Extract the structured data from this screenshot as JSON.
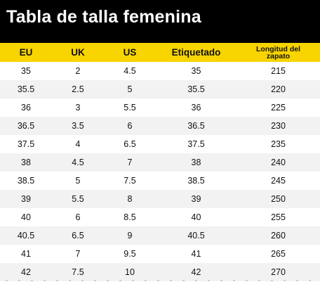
{
  "title": "Tabla de talla femenina",
  "colors": {
    "title_bg": "#000000",
    "title_fg": "#ffffff",
    "header_bg": "#f8d400",
    "row_alt_bg": "#f2f2f2"
  },
  "headers": {
    "eu": "EU",
    "uk": "UK",
    "us": "US",
    "label": "Etiquetado",
    "length_line1": "Longitud del",
    "length_line2": "zapato"
  },
  "rows": [
    {
      "eu": "35",
      "uk": "2",
      "us": "4.5",
      "label": "35",
      "length": "215"
    },
    {
      "eu": "35.5",
      "uk": "2.5",
      "us": "5",
      "label": "35.5",
      "length": "220"
    },
    {
      "eu": "36",
      "uk": "3",
      "us": "5.5",
      "label": "36",
      "length": "225"
    },
    {
      "eu": "36.5",
      "uk": "3.5",
      "us": "6",
      "label": "36.5",
      "length": "230"
    },
    {
      "eu": "37.5",
      "uk": "4",
      "us": "6.5",
      "label": "37.5",
      "length": "235"
    },
    {
      "eu": "38",
      "uk": "4.5",
      "us": "7",
      "label": "38",
      "length": "240"
    },
    {
      "eu": "38.5",
      "uk": "5",
      "us": "7.5",
      "label": "38.5",
      "length": "245"
    },
    {
      "eu": "39",
      "uk": "5.5",
      "us": "8",
      "label": "39",
      "length": "250"
    },
    {
      "eu": "40",
      "uk": "6",
      "us": "8.5",
      "label": "40",
      "length": "255"
    },
    {
      "eu": "40.5",
      "uk": "6.5",
      "us": "9",
      "label": "40.5",
      "length": "260"
    },
    {
      "eu": "41",
      "uk": "7",
      "us": "9.5",
      "label": "41",
      "length": "265"
    },
    {
      "eu": "42",
      "uk": "7.5",
      "us": "10",
      "label": "42",
      "length": "270"
    }
  ]
}
